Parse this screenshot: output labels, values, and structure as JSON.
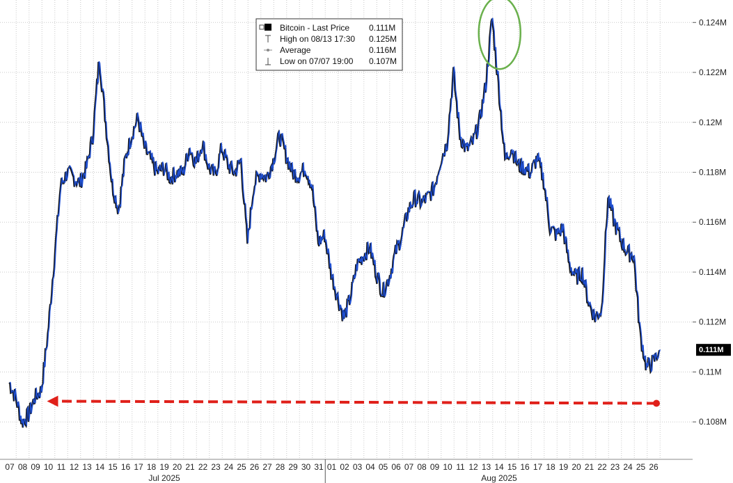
{
  "chart_data": {
    "type": "line",
    "title": "",
    "xlabel": "",
    "ylabel": "",
    "series": [
      {
        "name": "Bitcoin - Last Price",
        "color": "#1f4fd1",
        "x": [
          "07/07 00:00",
          "07/07 12:00",
          "07/08 00:00",
          "07/08 12:00",
          "07/09 00:00",
          "07/09 12:00",
          "07/10 00:00",
          "07/10 12:00",
          "07/11 00:00",
          "07/11 12:00",
          "07/12 00:00",
          "07/12 12:00",
          "07/13 00:00",
          "07/13 12:00",
          "07/14 00:00",
          "07/14 12:00",
          "07/15 00:00",
          "07/15 12:00",
          "07/16 00:00",
          "07/16 12:00",
          "07/17 00:00",
          "07/17 12:00",
          "07/18 00:00",
          "07/18 12:00",
          "07/19 00:00",
          "07/19 12:00",
          "07/20 00:00",
          "07/20 12:00",
          "07/21 00:00",
          "07/21 12:00",
          "07/22 00:00",
          "07/22 12:00",
          "07/23 00:00",
          "07/23 12:00",
          "07/24 00:00",
          "07/24 12:00",
          "07/25 00:00",
          "07/25 12:00",
          "07/26 00:00",
          "07/26 12:00",
          "07/27 00:00",
          "07/27 12:00",
          "07/28 00:00",
          "07/28 12:00",
          "07/29 00:00",
          "07/29 12:00",
          "07/30 00:00",
          "07/30 12:00",
          "07/31 00:00",
          "07/31 12:00",
          "08/01 00:00",
          "08/01 12:00",
          "08/02 00:00",
          "08/02 12:00",
          "08/03 00:00",
          "08/03 12:00",
          "08/04 00:00",
          "08/04 12:00",
          "08/05 00:00",
          "08/05 12:00",
          "08/06 00:00",
          "08/06 12:00",
          "08/07 00:00",
          "08/07 12:00",
          "08/08 00:00",
          "08/08 12:00",
          "08/09 00:00",
          "08/09 12:00",
          "08/10 00:00",
          "08/10 12:00",
          "08/11 00:00",
          "08/11 12:00",
          "08/12 00:00",
          "08/12 12:00",
          "08/13 00:00",
          "08/13 12:00",
          "08/14 00:00",
          "08/14 12:00",
          "08/15 00:00",
          "08/15 12:00",
          "08/16 00:00",
          "08/16 12:00",
          "08/17 00:00",
          "08/17 12:00",
          "08/18 00:00",
          "08/18 12:00",
          "08/19 00:00",
          "08/19 12:00",
          "08/20 00:00",
          "08/20 12:00",
          "08/21 00:00",
          "08/21 12:00",
          "08/22 00:00",
          "08/22 12:00",
          "08/23 00:00",
          "08/23 12:00",
          "08/24 00:00",
          "08/24 12:00",
          "08/25 00:00",
          "08/25 12:00",
          "08/26 00:00",
          "08/26 12:00"
        ],
        "y": [
          109600,
          109000,
          108000,
          108300,
          109000,
          109300,
          111500,
          114500,
          117500,
          118000,
          117800,
          117600,
          118200,
          119500,
          122600,
          120000,
          117500,
          116500,
          118500,
          119500,
          120200,
          119000,
          118500,
          118000,
          118200,
          117800,
          118000,
          118000,
          119000,
          118400,
          119200,
          118200,
          117900,
          119000,
          118300,
          118000,
          118500,
          115200,
          117500,
          118000,
          117800,
          118500,
          119500,
          118700,
          118000,
          117900,
          118200,
          117500,
          115200,
          115500,
          114000,
          113000,
          112200,
          113000,
          114300,
          114700,
          115000,
          114000,
          113200,
          113800,
          114800,
          115500,
          116500,
          117000,
          116800,
          117000,
          117400,
          118500,
          119200,
          122000,
          119500,
          118900,
          119200,
          120000,
          121500,
          124200,
          121500,
          118500,
          119000,
          118300,
          118200,
          118000,
          118600,
          117700,
          115800,
          115500,
          115800,
          114300,
          113800,
          114000,
          112800,
          112200,
          112500,
          117000,
          116000,
          115300,
          114800,
          114700,
          111500,
          110200,
          110400,
          110900
        ]
      }
    ],
    "ylim": [
      106500,
      124900
    ],
    "yticks": [
      108000,
      110000,
      112000,
      114000,
      116000,
      118000,
      120000,
      122000,
      124000
    ],
    "ytick_labels": [
      "0.108M",
      "0.11M",
      "0.112M",
      "0.114M",
      "0.116M",
      "0.118M",
      "0.12M",
      "0.122M",
      "0.124M"
    ],
    "xtick_labels": [
      "07",
      "08",
      "09",
      "10",
      "11",
      "12",
      "13",
      "14",
      "15",
      "16",
      "17",
      "18",
      "19",
      "20",
      "21",
      "22",
      "23",
      "24",
      "25",
      "26",
      "27",
      "28",
      "29",
      "30",
      "31",
      "01",
      "02",
      "03",
      "04",
      "05",
      "06",
      "07",
      "08",
      "09",
      "10",
      "11",
      "12",
      "13",
      "14",
      "15",
      "16",
      "17",
      "18",
      "19",
      "20",
      "21",
      "22",
      "23",
      "24",
      "25",
      "26"
    ],
    "month_labels": [
      {
        "label": "Jul 2025",
        "center_index": 12
      },
      {
        "label": "Aug 2025",
        "center_index": 38
      }
    ],
    "grid": "on",
    "legend": {
      "placement": "top-center",
      "entries": [
        {
          "icon": "square-icon",
          "label": "Bitcoin - Last Price",
          "value": "0.111M"
        },
        {
          "icon": "high-marker-icon",
          "label": "High on 08/13 17:30",
          "value": "0.125M"
        },
        {
          "icon": "average-marker-icon",
          "label": "Average",
          "value": "0.116M"
        },
        {
          "icon": "low-marker-icon",
          "label": "Low on 07/07 19:00",
          "value": "0.107M"
        }
      ]
    },
    "last_price_label": "0.111M",
    "annotations": {
      "peak_circle": {
        "x": "08/13 12:00",
        "y": 123500,
        "color": "#6ab04c"
      },
      "arrow": {
        "from_x": "08/26 00:00",
        "to_x": "07/10 00:00",
        "y": 108800,
        "color": "#e0201a"
      }
    }
  }
}
